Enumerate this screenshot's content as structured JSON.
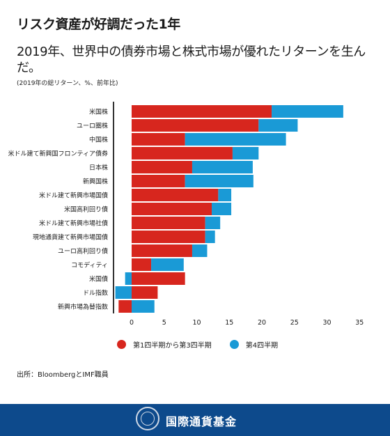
{
  "headline": "リスク資産が好調だった1年",
  "title": "2019年、世界中の債券市場と株式市場が優れたリターンを生んだ。",
  "subtitle": "(2019年の総リターン、%、前年比)",
  "legend": {
    "q1q3": "第1四半期から第3四半期",
    "q4": "第4四半期"
  },
  "source": "出所：BloombergとIMF職員",
  "footer": {
    "org_name": "国際通貨基金"
  },
  "colors": {
    "q1q3": "#d7261e",
    "q4": "#1a9ad6",
    "axis": "#333333",
    "footer": "#0d4a8c"
  },
  "chart_data": {
    "type": "bar",
    "orientation": "horizontal",
    "stacked": true,
    "categories": [
      "米国株",
      "ユーロ圏株",
      "中国株",
      "米ドル建て新興国フロンティア債券",
      "日本株",
      "新興国株",
      "米ドル建て新興市場国債",
      "米国高利回り債",
      "米ドル建て新興市場社債",
      "現地通貨建て新興市場国債",
      "ユーロ高利回り債",
      "コモディティ",
      "米国債",
      "ドル指数",
      "新興市場為替指数"
    ],
    "series": [
      {
        "name": "第1四半期から第3四半期",
        "values": [
          21.5,
          19.5,
          8.2,
          15.5,
          9.3,
          8.2,
          13.3,
          12.3,
          11.3,
          11.3,
          9.3,
          3.0,
          8.2,
          4.0,
          -2.0
        ]
      },
      {
        "name": "第4四半期",
        "values": [
          11.0,
          6.0,
          15.5,
          4.0,
          9.3,
          10.5,
          2.0,
          3.0,
          2.3,
          1.5,
          2.3,
          5.0,
          -1.0,
          -2.5,
          3.5
        ]
      }
    ],
    "xlim": [
      -3,
      35
    ],
    "xticks": [
      0,
      5,
      10,
      15,
      20,
      25,
      30,
      35
    ],
    "xlabel": "",
    "ylabel": "",
    "grid": false,
    "legend_position": "bottom"
  }
}
